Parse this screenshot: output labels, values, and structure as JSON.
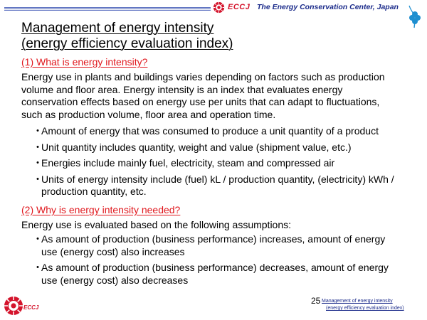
{
  "header": {
    "org_short": "ECCJ",
    "org_name": "The Energy Conservation Center, Japan"
  },
  "title": {
    "line1": "Management of energy intensity",
    "line2": "(energy efficiency evaluation index)"
  },
  "section1": {
    "heading": "(1) What is energy intensity?",
    "paragraph": "Energy use in plants and buildings varies depending on factors such as production volume and floor area. Energy intensity is an index that evaluates energy conservation effects based on energy use per units that can adapt to fluctuations, such as production volume, floor area and operation time.",
    "bullets": [
      "Amount of energy that was consumed to produce a unit quantity of a product",
      "Unit quantity includes quantity, weight and value (shipment value, etc.)",
      "Energies include mainly fuel, electricity, steam and compressed air",
      "Units of energy intensity include (fuel) kL / production quantity, (electricity) kWh / production quantity, etc."
    ]
  },
  "section2": {
    "heading": "(2) Why is energy intensity needed?",
    "paragraph": "Energy use is evaluated based on the following assumptions:",
    "bullets": [
      "As amount of production (business performance) increases, amount of energy use (energy cost) also increases",
      "As amount of production (business performance) decreases, amount of energy use (energy cost) also decreases"
    ]
  },
  "footer": {
    "logo_text": "ECCJ",
    "page_number": "25",
    "link_line1": "Management of energy intensity",
    "link_line2": "(energy efficiency evaluation index)"
  },
  "bullet_glyph": "・",
  "colors": {
    "section_heading": "#e0181e",
    "brand_red": "#d4142c",
    "brand_blue": "#1a2a8a",
    "clover": "#1e8fd0"
  }
}
